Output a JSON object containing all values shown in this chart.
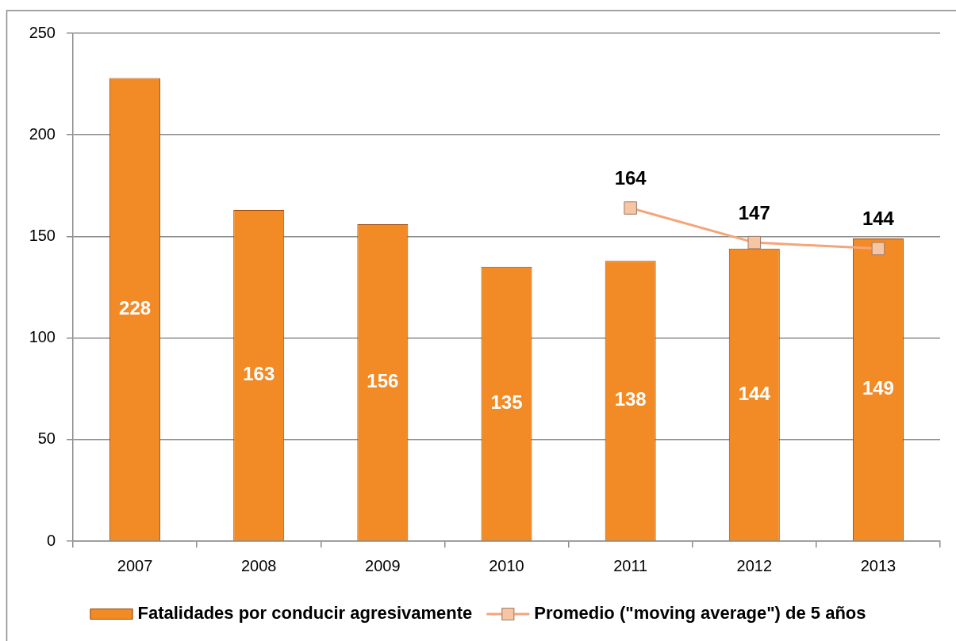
{
  "chart_data": {
    "type": "bar",
    "categories": [
      "2007",
      "2008",
      "2009",
      "2010",
      "2011",
      "2012",
      "2013"
    ],
    "series": [
      {
        "name": "Fatalidades por conducir agresivamente",
        "color": "#f28a26",
        "values": [
          228,
          163,
          156,
          135,
          138,
          144,
          149
        ]
      },
      {
        "name": "Promedio (\"moving average\") de 5 años",
        "type": "line",
        "color": "#f4a57a",
        "values": [
          null,
          null,
          null,
          null,
          164,
          147,
          144
        ]
      }
    ],
    "ylim": [
      0,
      250
    ],
    "yticks": [
      0,
      50,
      100,
      150,
      200,
      250
    ],
    "grid": "y",
    "legend": "bottom",
    "marker": "square",
    "data_labels": true
  }
}
